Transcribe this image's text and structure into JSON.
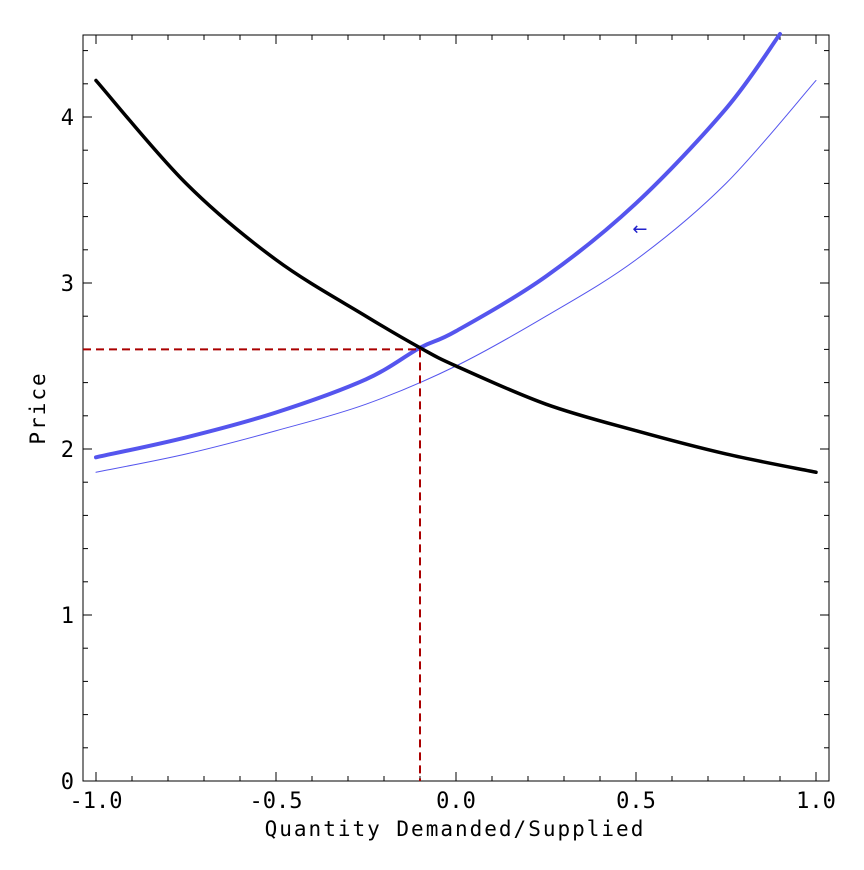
{
  "chart_data": {
    "type": "line",
    "title": "",
    "xlabel": "Quantity Demanded/Supplied",
    "ylabel": "Price",
    "xlim": [
      -1.0,
      1.0
    ],
    "ylim": [
      0,
      4.5
    ],
    "x_ticks": [
      -1.0,
      -0.5,
      0.0,
      0.5,
      1.0
    ],
    "x_tick_labels": [
      "-1.0",
      "-0.5",
      "0.0",
      "0.5",
      "1.0"
    ],
    "y_ticks": [
      0,
      1,
      2,
      3,
      4
    ],
    "y_tick_labels": [
      "0",
      "1",
      "2",
      "3",
      "4"
    ],
    "grid": false,
    "series": [
      {
        "kind": "demand",
        "color": "#000000",
        "points": [
          [
            -1.0,
            4.22
          ],
          [
            -0.75,
            3.6
          ],
          [
            -0.5,
            3.14
          ],
          [
            -0.25,
            2.8
          ],
          [
            -0.1,
            2.61
          ],
          [
            0.0,
            2.5
          ],
          [
            0.25,
            2.27
          ],
          [
            0.5,
            2.11
          ],
          [
            0.75,
            1.97
          ],
          [
            1.0,
            1.86
          ]
        ]
      },
      {
        "kind": "supply_shifted",
        "color": "#5555ee",
        "points": [
          [
            -1.0,
            1.95
          ],
          [
            -0.75,
            2.07
          ],
          [
            -0.5,
            2.22
          ],
          [
            -0.25,
            2.42
          ],
          [
            -0.1,
            2.61
          ],
          [
            0.0,
            2.71
          ],
          [
            0.25,
            3.04
          ],
          [
            0.5,
            3.48
          ],
          [
            0.75,
            4.05
          ],
          [
            0.9,
            4.5
          ]
        ]
      },
      {
        "kind": "supply_original",
        "color": "#5555ee",
        "points": [
          [
            -1.0,
            1.86
          ],
          [
            -0.75,
            1.97
          ],
          [
            -0.5,
            2.11
          ],
          [
            -0.25,
            2.27
          ],
          [
            0.0,
            2.5
          ],
          [
            0.25,
            2.8
          ],
          [
            0.5,
            3.14
          ],
          [
            0.75,
            3.6
          ],
          [
            1.0,
            4.22
          ]
        ]
      }
    ],
    "equilibrium": {
      "x": -0.1,
      "y": 2.6,
      "color": "#aa0000"
    },
    "annotations": [
      {
        "text": "←",
        "x": 0.49,
        "y": 3.29,
        "color": "#2222cc"
      }
    ]
  }
}
